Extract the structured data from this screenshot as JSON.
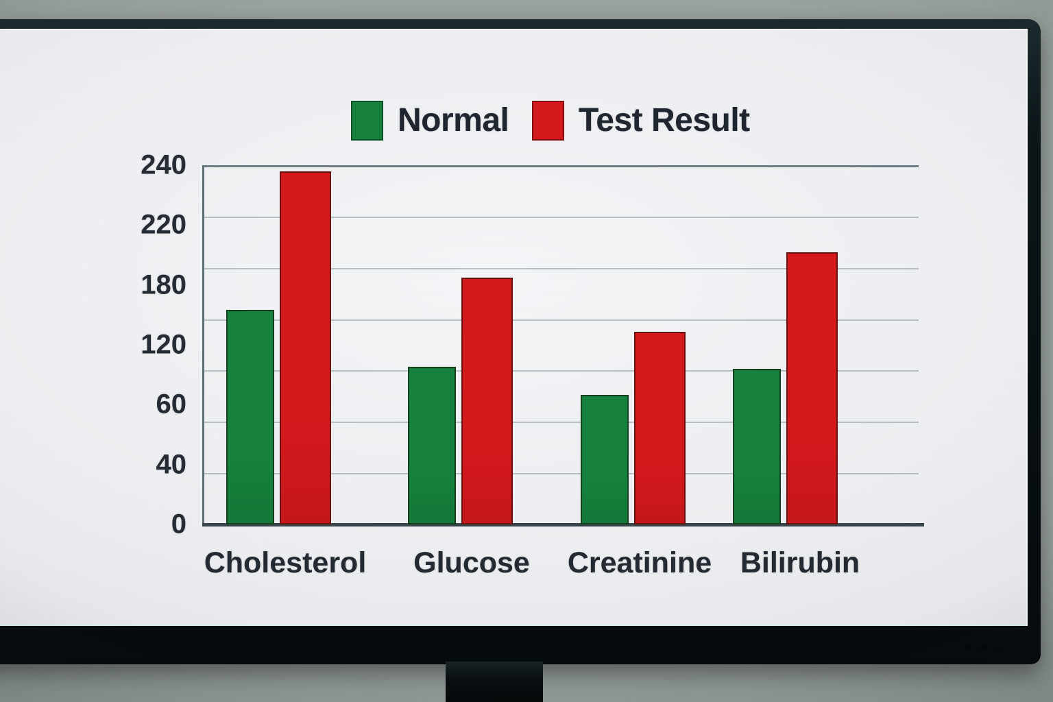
{
  "chart_data": {
    "type": "bar",
    "title": "",
    "xlabel": "",
    "ylabel": "",
    "categories": [
      "Cholesterol",
      "Glucose",
      "Creatinine",
      "Bilirubin"
    ],
    "series": [
      {
        "name": "Normal",
        "color": "#15813c",
        "values": [
          155,
          98,
          70,
          96
        ]
      },
      {
        "name": "Test Result",
        "color": "#d4191d",
        "values": [
          238,
          185,
          133,
          202
        ]
      }
    ],
    "y_ticks": [
      240,
      220,
      180,
      120,
      60,
      40,
      0
    ],
    "ylim": [
      0,
      240
    ],
    "grid": true,
    "legend_position": "top-center",
    "gridline_color": "#b4c0c2",
    "axis_color": "#39474d",
    "label_color": "#262c34"
  }
}
